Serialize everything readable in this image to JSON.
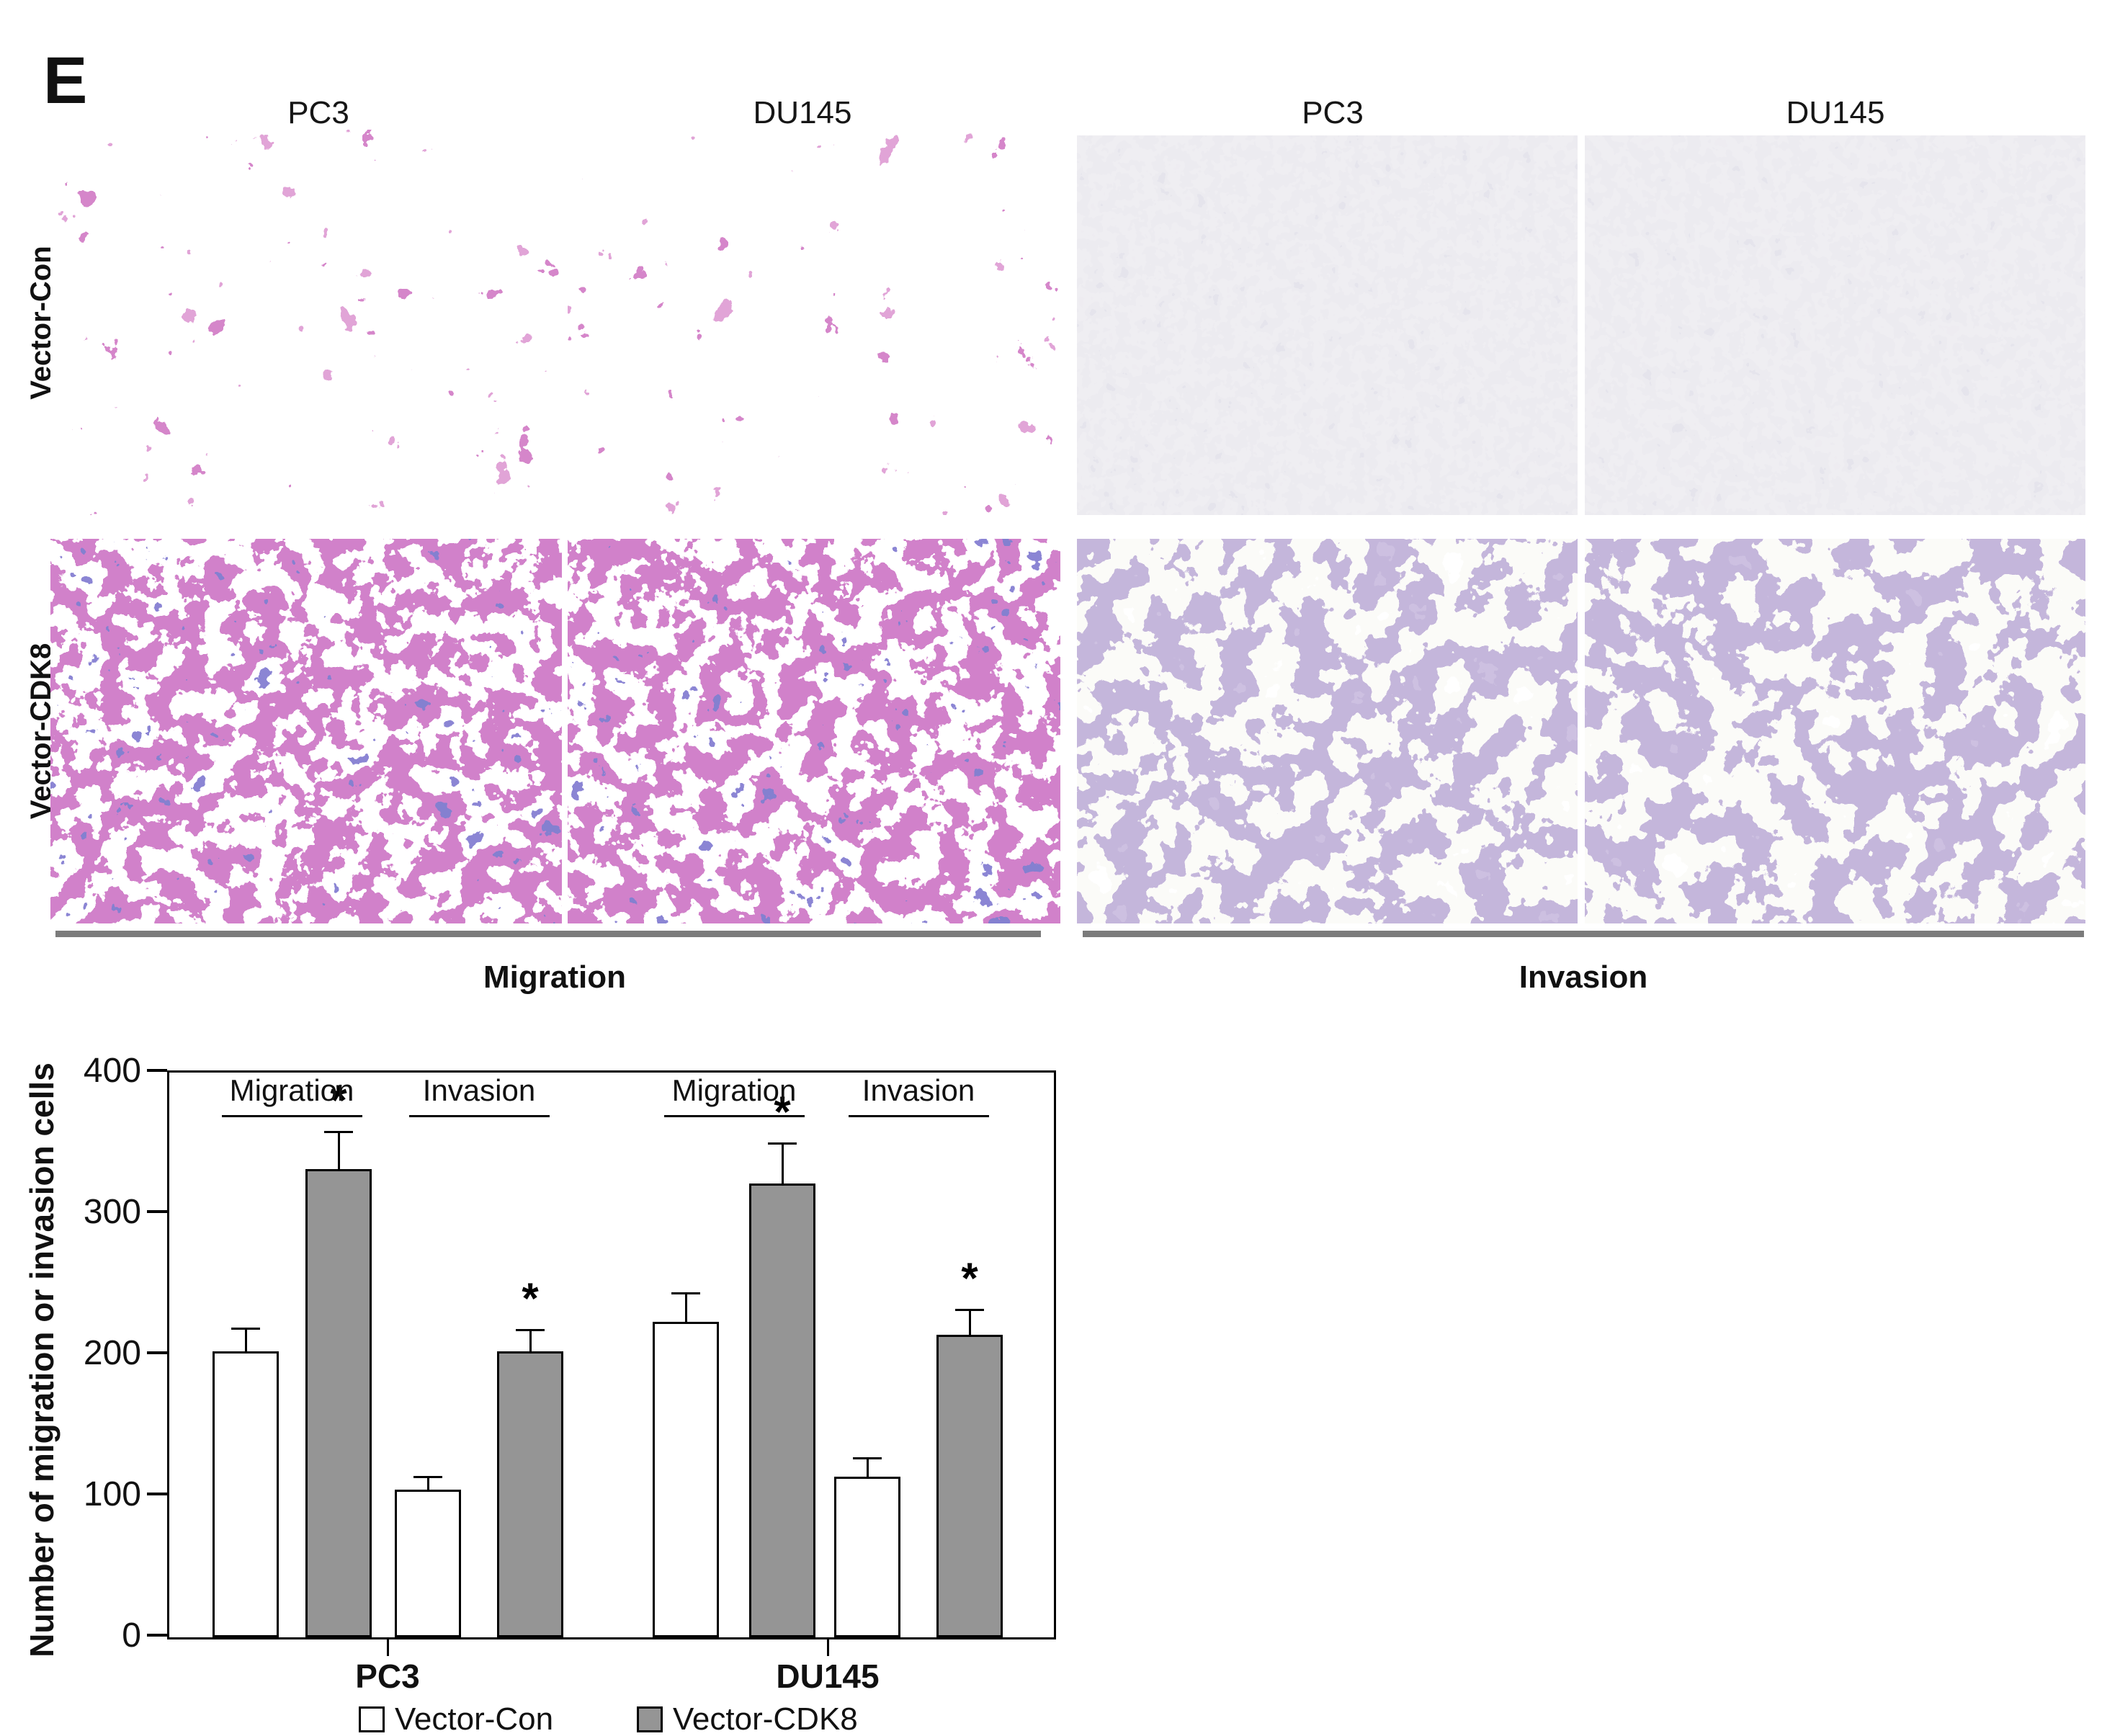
{
  "panel_label": "E",
  "micrographs": {
    "column_headers": [
      "PC3",
      "DU145",
      "PC3",
      "DU145"
    ],
    "row_labels": [
      "Vector-Con",
      "Vector-CDK8"
    ],
    "assay_labels": [
      "Migration",
      "Invasion"
    ],
    "panels": [
      {
        "assay": "Migration",
        "cell_line": "PC3",
        "condition": "Vector-Con",
        "appearance": "moderate pink-magenta stained cells on white"
      },
      {
        "assay": "Migration",
        "cell_line": "DU145",
        "condition": "Vector-Con",
        "appearance": "moderate pink-magenta stained cells on white"
      },
      {
        "assay": "Invasion",
        "cell_line": "PC3",
        "condition": "Vector-Con",
        "appearance": "sparse dark purple cells on pale gray"
      },
      {
        "assay": "Invasion",
        "cell_line": "DU145",
        "condition": "Vector-Con",
        "appearance": "sparse dark purple cells on pale gray"
      },
      {
        "assay": "Migration",
        "cell_line": "PC3",
        "condition": "Vector-CDK8",
        "appearance": "dense dark blue-magenta stained cells"
      },
      {
        "assay": "Migration",
        "cell_line": "DU145",
        "condition": "Vector-CDK8",
        "appearance": "dense dark blue-magenta stained cells"
      },
      {
        "assay": "Invasion",
        "cell_line": "PC3",
        "condition": "Vector-CDK8",
        "appearance": "dense medium purple stained cells on white"
      },
      {
        "assay": "Invasion",
        "cell_line": "DU145",
        "condition": "Vector-CDK8",
        "appearance": "dense medium purple stained cells on white"
      }
    ]
  },
  "chart_data": {
    "type": "bar",
    "title": "",
    "ylabel": "Number of migration or invasion cells",
    "xlabel": "",
    "ylim": [
      0,
      400
    ],
    "yticks": [
      0,
      100,
      200,
      300,
      400
    ],
    "grid": false,
    "legend_position": "bottom",
    "categories": [
      "PC3",
      "DU145"
    ],
    "series_names": [
      "Vector-Con",
      "Vector-CDK8"
    ],
    "groups": [
      {
        "category": "PC3",
        "assay": "Migration",
        "bars": [
          {
            "series": "Vector-Con",
            "value": 201,
            "error": 17,
            "sig": ""
          },
          {
            "series": "Vector-CDK8",
            "value": 330,
            "error": 27,
            "sig": "*"
          }
        ]
      },
      {
        "category": "PC3",
        "assay": "Invasion",
        "bars": [
          {
            "series": "Vector-Con",
            "value": 103,
            "error": 10,
            "sig": ""
          },
          {
            "series": "Vector-CDK8",
            "value": 201,
            "error": 16,
            "sig": "*"
          }
        ]
      },
      {
        "category": "DU145",
        "assay": "Migration",
        "bars": [
          {
            "series": "Vector-Con",
            "value": 222,
            "error": 21,
            "sig": ""
          },
          {
            "series": "Vector-CDK8",
            "value": 320,
            "error": 29,
            "sig": "*"
          }
        ]
      },
      {
        "category": "DU145",
        "assay": "Invasion",
        "bars": [
          {
            "series": "Vector-Con",
            "value": 112,
            "error": 14,
            "sig": ""
          },
          {
            "series": "Vector-CDK8",
            "value": 213,
            "error": 18,
            "sig": "*"
          }
        ]
      }
    ],
    "legend": [
      {
        "label": "Vector-Con",
        "fill": "#ffffff"
      },
      {
        "label": "Vector-CDK8",
        "fill": "#959595"
      }
    ]
  },
  "colors": {
    "bar_gray": "#959595",
    "bar_border": "#000000",
    "assay_underline_gray": "#7b7b7b",
    "migration_stain_magenta": "#a93e97",
    "migration_stain_blue": "#3c37a2",
    "invasion_background_gray": "#d9d7e1",
    "invasion_stain_purple": "#8d77b5",
    "text": "#1a1a1a"
  }
}
